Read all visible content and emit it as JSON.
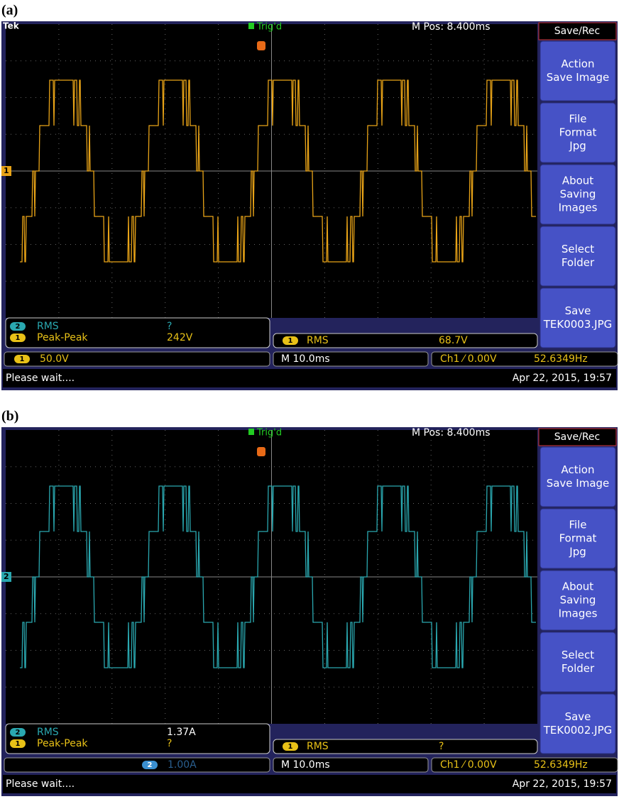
{
  "panels": [
    {
      "label": "(a)",
      "tek": "Tek",
      "trig": "Trig'd",
      "mpos": "M Pos: 8.400ms",
      "channel_marker": "1",
      "menu_title": "Save/Rec",
      "buttons": [
        [
          "Action",
          "Save Image"
        ],
        [
          "File",
          "Format",
          "Jpg"
        ],
        [
          "About",
          "Saving",
          "Images"
        ],
        [
          "Select",
          "Folder"
        ],
        [
          "Save",
          "TEK0003.JPG"
        ]
      ],
      "measurements": [
        {
          "icon": "2",
          "name": "RMS",
          "value": "?"
        },
        {
          "icon": "1",
          "name": "Peak-Peak",
          "value": "242V"
        }
      ],
      "right_measurement": {
        "icon": "1",
        "name": "RMS",
        "value": "68.7V"
      },
      "scale_channel": "1",
      "scale": "50.0V",
      "timebase": "M 10.0ms",
      "trigger": "Ch1 ⁄ 0.00V",
      "frequency": "52.6349Hz",
      "status": "Please wait....",
      "date": "Apr 22, 2015, 19:57"
    },
    {
      "label": "(b)",
      "trig": "Trig'd",
      "mpos": "M Pos: 8.400ms",
      "channel_marker": "2",
      "menu_title": "Save/Rec",
      "buttons": [
        [
          "Action",
          "Save Image"
        ],
        [
          "File",
          "Format",
          "Jpg"
        ],
        [
          "About",
          "Saving",
          "Images"
        ],
        [
          "Select",
          "Folder"
        ],
        [
          "Save",
          "TEK0002.JPG"
        ]
      ],
      "measurements": [
        {
          "icon": "2",
          "name": "RMS",
          "value": "1.37A"
        },
        {
          "icon": "1",
          "name": "Peak-Peak",
          "value": "?"
        }
      ],
      "right_measurement": {
        "icon": "1",
        "name": "RMS",
        "value": "?"
      },
      "scale_channel": "2",
      "scale": "1.00A",
      "timebase": "M 10.0ms",
      "trigger": "Ch1 ⁄ 0.00V",
      "frequency": "52.6349Hz",
      "status": "Please wait....",
      "date": "Apr 22, 2015, 19:57"
    }
  ]
}
